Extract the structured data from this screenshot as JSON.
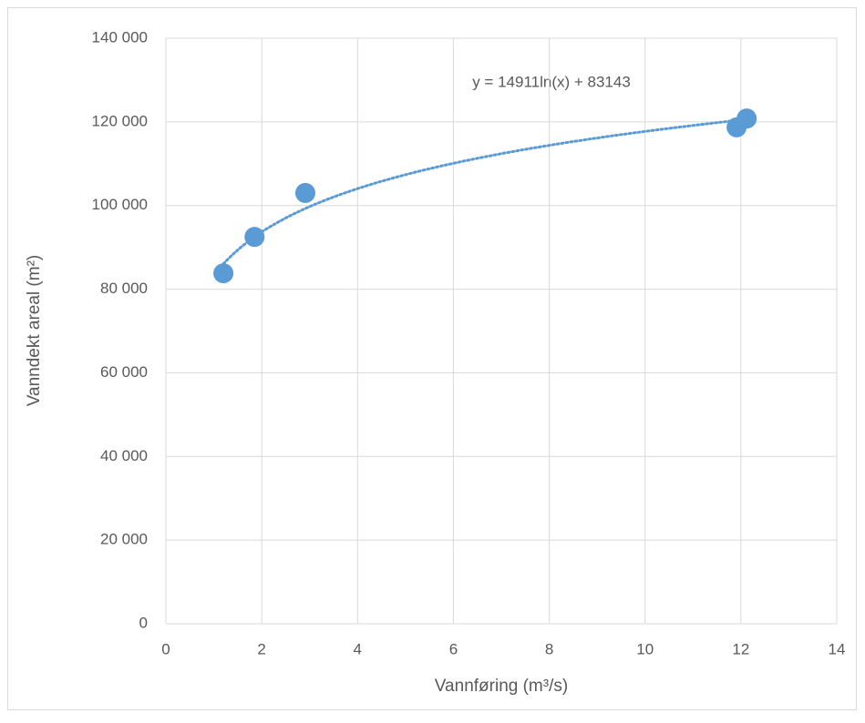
{
  "chart_data": {
    "type": "scatter",
    "x_label": "Vannføring (m³/s)",
    "y_label": "Vanndekt areal (m²)",
    "series": [
      {
        "name": "Vanndekt areal",
        "color": "#5b9bd5",
        "x": [
          1.2,
          1.85,
          2.91,
          11.91,
          12.12
        ],
        "values": [
          83800,
          92500,
          103000,
          118700,
          120800
        ]
      }
    ],
    "trendline": {
      "type": "logarithmic",
      "color": "#5b9bd5",
      "label": "y = 14911ln(x) + 83143"
    },
    "xlim": [
      0,
      14
    ],
    "xticks": [
      0,
      2,
      4,
      6,
      8,
      10,
      12,
      14
    ],
    "ylim": [
      0,
      140000
    ],
    "yticks": [
      0,
      {
        "value": 20000,
        "label": "20 000"
      },
      {
        "value": 40000,
        "label": "40 000"
      },
      {
        "value": 60000,
        "label": "60 000"
      },
      {
        "value": 80000,
        "label": "80 000"
      },
      {
        "value": 100000,
        "label": "100 000"
      },
      {
        "value": 120000,
        "label": "120 000"
      },
      {
        "value": 140000,
        "label": "140 000"
      }
    ],
    "grid": true
  }
}
